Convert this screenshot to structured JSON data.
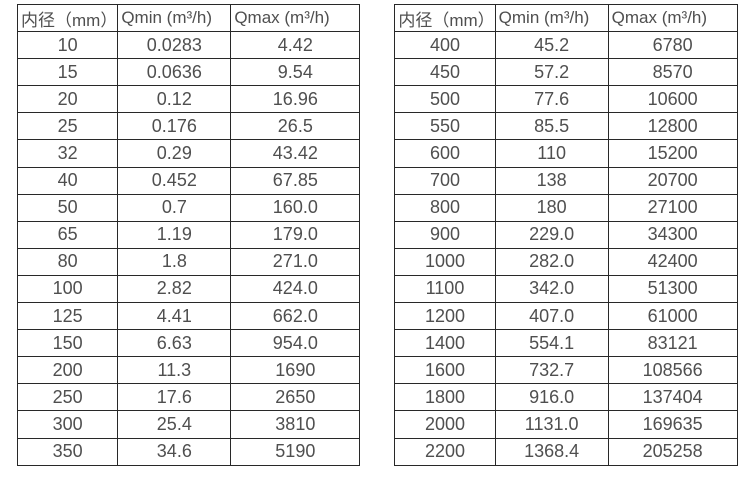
{
  "page": {
    "background_color": "#ffffff",
    "border_color": "#282828",
    "text_color": "#4f4f4f"
  },
  "tables": [
    {
      "title": "flow-table-small-diameters",
      "headers": [
        "内径（mm）",
        "Qmin (m³/h)",
        "Qmax (m³/h)"
      ],
      "rows": [
        [
          "10",
          "0.0283",
          "4.42"
        ],
        [
          "15",
          "0.0636",
          "9.54"
        ],
        [
          "20",
          "0.12",
          "16.96"
        ],
        [
          "25",
          "0.176",
          "26.5"
        ],
        [
          "32",
          "0.29",
          "43.42"
        ],
        [
          "40",
          "0.452",
          "67.85"
        ],
        [
          "50",
          "0.7",
          "160.0"
        ],
        [
          "65",
          "1.19",
          "179.0"
        ],
        [
          "80",
          "1.8",
          "271.0"
        ],
        [
          "100",
          "2.82",
          "424.0"
        ],
        [
          "125",
          "4.41",
          "662.0"
        ],
        [
          "150",
          "6.63",
          "954.0"
        ],
        [
          "200",
          "11.3",
          "1690"
        ],
        [
          "250",
          "17.6",
          "2650"
        ],
        [
          "300",
          "25.4",
          "3810"
        ],
        [
          "350",
          "34.6",
          "5190"
        ]
      ]
    },
    {
      "title": "flow-table-large-diameters",
      "headers": [
        "内径（mm）",
        "Qmin (m³/h)",
        "Qmax (m³/h)"
      ],
      "rows": [
        [
          "400",
          "45.2",
          "6780"
        ],
        [
          "450",
          "57.2",
          "8570"
        ],
        [
          "500",
          "77.6",
          "10600"
        ],
        [
          "550",
          "85.5",
          "12800"
        ],
        [
          "600",
          "110",
          "15200"
        ],
        [
          "700",
          "138",
          "20700"
        ],
        [
          "800",
          "180",
          "27100"
        ],
        [
          "900",
          "229.0",
          "34300"
        ],
        [
          "1000",
          "282.0",
          "42400"
        ],
        [
          "1100",
          "342.0",
          "51300"
        ],
        [
          "1200",
          "407.0",
          "61000"
        ],
        [
          "1400",
          "554.1",
          "83121"
        ],
        [
          "1600",
          "732.7",
          "108566"
        ],
        [
          "1800",
          "916.0",
          "137404"
        ],
        [
          "2000",
          "1131.0",
          "169635"
        ],
        [
          "2200",
          "1368.4",
          "205258"
        ]
      ]
    }
  ]
}
